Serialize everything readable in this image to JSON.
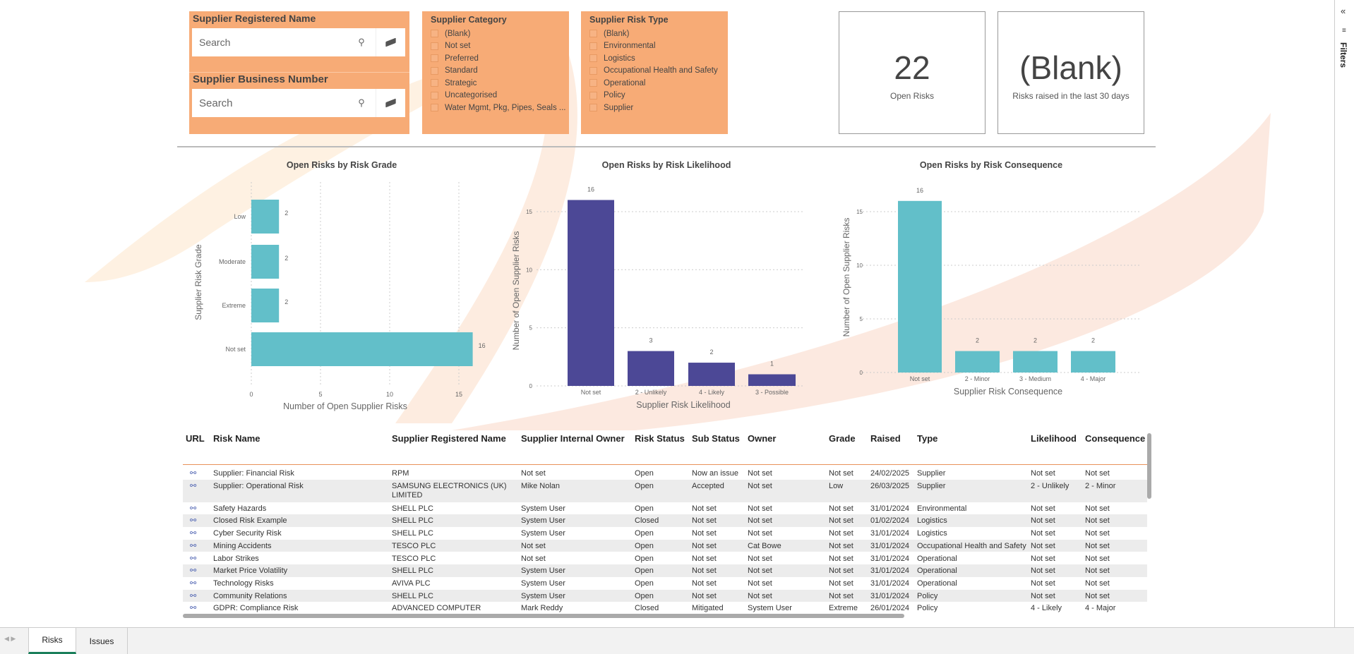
{
  "filters": {
    "registered_name": {
      "title": "Supplier Registered Name",
      "placeholder": "Search"
    },
    "business_number": {
      "title": "Supplier Business Number",
      "placeholder": "Search"
    },
    "category": {
      "title": "Supplier Category",
      "options": [
        "(Blank)",
        "Not set",
        "Preferred",
        "Standard",
        "Strategic",
        "Uncategorised",
        "Water Mgmt, Pkg, Pipes, Seals ..."
      ]
    },
    "risk_type": {
      "title": "Supplier Risk Type",
      "options": [
        "(Blank)",
        "Environmental",
        "Logistics",
        "Occupational Health and Safety",
        "Operational",
        "Policy",
        "Supplier"
      ]
    }
  },
  "kpis": [
    {
      "value": "22",
      "label": "Open Risks"
    },
    {
      "value": "(Blank)",
      "label": "Risks raised in the last 30 days"
    }
  ],
  "colors": {
    "filter_bg": "#f7ab76",
    "teal": "#62bfc9",
    "purple": "#4c4896",
    "accent_line": "#e8925a",
    "active_tab": "#1a7f5a"
  },
  "chart_data": [
    {
      "type": "bar",
      "orientation": "horizontal",
      "title": "Open Risks by Risk Grade",
      "categories": [
        "Low",
        "Moderate",
        "Extreme",
        "Not set"
      ],
      "values": [
        2,
        2,
        2,
        16
      ],
      "xlabel": "Number of Open Supplier Risks",
      "ylabel": "Supplier Risk Grade",
      "xlim": [
        0,
        16
      ],
      "ticks": [
        "0",
        "5",
        "10",
        "15"
      ],
      "grid": true
    },
    {
      "type": "bar",
      "title": "Open Risks by Risk Likelihood",
      "categories": [
        "Not set",
        "2 - Unlikely",
        "4 - Likely",
        "3 - Possible"
      ],
      "values": [
        16,
        3,
        2,
        1
      ],
      "xlabel": "Supplier Risk Likelihood",
      "ylabel": "Number of Open Supplier Risks",
      "ylim": [
        0,
        16
      ],
      "ticks": [
        "0",
        "5",
        "10",
        "15"
      ],
      "grid": true
    },
    {
      "type": "bar",
      "title": "Open Risks by Risk Consequence",
      "categories": [
        "Not set",
        "2 - Minor",
        "3 - Medium",
        "4 - Major"
      ],
      "values": [
        16,
        2,
        2,
        2
      ],
      "xlabel": "Supplier Risk Consequence",
      "ylabel": "Number of Open Supplier Risks",
      "ylim": [
        0,
        16
      ],
      "ticks": [
        "0",
        "5",
        "10",
        "15"
      ],
      "grid": true
    }
  ],
  "table": {
    "columns": [
      "URL",
      "Risk Name",
      "Supplier Registered Name",
      "Supplier Internal Owner",
      "Risk Status",
      "Sub Status",
      "Owner",
      "Grade",
      "Raised",
      "Type",
      "Likelihood",
      "Consequence"
    ],
    "rows": [
      [
        "link",
        "Supplier: Financial Risk",
        "RPM",
        "Not set",
        "Open",
        "Now an issue",
        "Not set",
        "Not set",
        "24/02/2025",
        "Supplier",
        "Not set",
        "Not set"
      ],
      [
        "link",
        "Supplier: Operational Risk",
        "SAMSUNG ELECTRONICS (UK) LIMITED",
        "Mike Nolan",
        "Open",
        "Accepted",
        "Not set",
        "Low",
        "26/03/2025",
        "Supplier",
        "2 - Unlikely",
        "2 - Minor"
      ],
      [
        "link",
        "Safety Hazards",
        "SHELL PLC",
        "System User",
        "Open",
        "Not set",
        "Not set",
        "Not set",
        "31/01/2024",
        "Environmental",
        "Not set",
        "Not set"
      ],
      [
        "link",
        "Closed Risk Example",
        "SHELL PLC",
        "System User",
        "Closed",
        "Not set",
        "Not set",
        "Not set",
        "01/02/2024",
        "Logistics",
        "Not set",
        "Not set"
      ],
      [
        "link",
        "Cyber Security Risk",
        "SHELL PLC",
        "System User",
        "Open",
        "Not set",
        "Not set",
        "Not set",
        "31/01/2024",
        "Logistics",
        "Not set",
        "Not set"
      ],
      [
        "link",
        "Mining Accidents",
        "TESCO PLC",
        "Not set",
        "Open",
        "Not set",
        "Cat Bowe",
        "Not set",
        "31/01/2024",
        "Occupational Health and Safety",
        "Not set",
        "Not set"
      ],
      [
        "link",
        "Labor Strikes",
        "TESCO PLC",
        "Not set",
        "Open",
        "Not set",
        "Not set",
        "Not set",
        "31/01/2024",
        "Operational",
        "Not set",
        "Not set"
      ],
      [
        "link",
        "Market Price Volatility",
        "SHELL PLC",
        "System User",
        "Open",
        "Not set",
        "Not set",
        "Not set",
        "31/01/2024",
        "Operational",
        "Not set",
        "Not set"
      ],
      [
        "link",
        "Technology Risks",
        "AVIVA PLC",
        "System User",
        "Open",
        "Not set",
        "Not set",
        "Not set",
        "31/01/2024",
        "Operational",
        "Not set",
        "Not set"
      ],
      [
        "link",
        "Community Relations",
        "SHELL PLC",
        "System User",
        "Open",
        "Not set",
        "Not set",
        "Not set",
        "31/01/2024",
        "Policy",
        "Not set",
        "Not set"
      ],
      [
        "link",
        "GDPR: Compliance Risk",
        "ADVANCED COMPUTER SOLUTIONS LIMITED",
        "Mark Reddy",
        "Closed",
        "Mitigated",
        "System User",
        "Extreme",
        "26/01/2024",
        "Policy",
        "4 - Likely",
        "4 - Major"
      ]
    ]
  },
  "filters_pane": {
    "label": "Filters",
    "collapse_icon": "double-chevron-left-icon"
  },
  "tabs": [
    {
      "label": "Risks",
      "active": true
    },
    {
      "label": "Issues",
      "active": false
    }
  ]
}
